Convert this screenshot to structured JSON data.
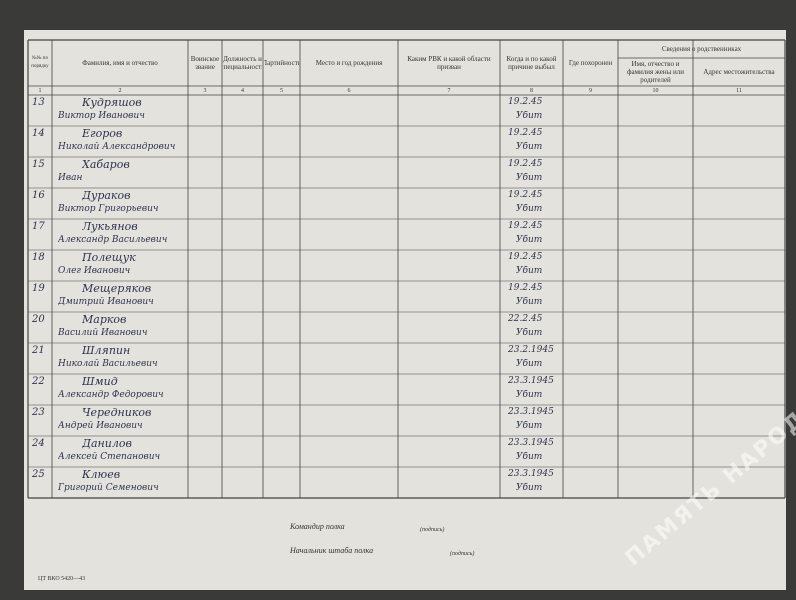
{
  "header": {
    "columns": [
      "№№ по порядку",
      "Фамилия, имя и отчество",
      "Воинское звание",
      "Должность и специальность",
      "Партийность",
      "Место и год рождения",
      "Каким РВК и какой области призван",
      "Когда и по какой причине выбыл",
      "Где похоронен",
      "Имя, отчество и фамилия жены или родителей",
      "Адрес местожительства"
    ],
    "relatives_group": "Сведения о родственниках",
    "col_numbers": [
      "1",
      "2",
      "3",
      "4",
      "5",
      "6",
      "7",
      "8",
      "9",
      "10",
      "11"
    ]
  },
  "rows": [
    {
      "number": "13",
      "surname": "Кудряшов",
      "names": "Виктор Иванович",
      "date": "19.2.45",
      "status": "Убит"
    },
    {
      "number": "14",
      "surname": "Егоров",
      "names": "Николай Александрович",
      "date": "19.2.45",
      "status": "Убит"
    },
    {
      "number": "15",
      "surname": "Хабаров",
      "names": "Иван",
      "date": "19.2.45",
      "status": "Убит"
    },
    {
      "number": "16",
      "surname": "Дураков",
      "names": "Виктор Григорьевич",
      "date": "19.2.45",
      "status": "Убит"
    },
    {
      "number": "17",
      "surname": "Лукьянов",
      "names": "Александр Васильевич",
      "date": "19.2.45",
      "status": "Убит"
    },
    {
      "number": "18",
      "surname": "Полещук",
      "names": "Олег Иванович",
      "date": "19.2.45",
      "status": "Убит"
    },
    {
      "number": "19",
      "surname": "Мещеряков",
      "names": "Дмитрий Иванович",
      "date": "19.2.45",
      "status": "Убит"
    },
    {
      "number": "20",
      "surname": "Марков",
      "names": "Василий Иванович",
      "date": "22.2.45",
      "status": "Убит"
    },
    {
      "number": "21",
      "surname": "Шляпин",
      "names": "Николай Васильевич",
      "date": "23.2.1945",
      "status": "Убит"
    },
    {
      "number": "22",
      "surname": "Шмид",
      "names": "Александр Федорович",
      "date": "23.3.1945",
      "status": "Убит"
    },
    {
      "number": "23",
      "surname": "Чередников",
      "names": "Андрей Иванович",
      "date": "23.3.1945",
      "status": "Убит"
    },
    {
      "number": "24",
      "surname": "Данилов",
      "names": "Алексей Степанович",
      "date": "23.3.1945",
      "status": "Убит"
    },
    {
      "number": "25",
      "surname": "Клюев",
      "names": "Григорий Семенович",
      "date": "23.3.1945",
      "status": "Убит"
    }
  ],
  "footer": {
    "commander": "Командир полка",
    "chief": "Начальник штаба полка",
    "signature": "(подпись)",
    "form_code": "ЦТ ВКО 5420—43"
  },
  "watermark": "ПАМЯТЬ НАРОДА"
}
